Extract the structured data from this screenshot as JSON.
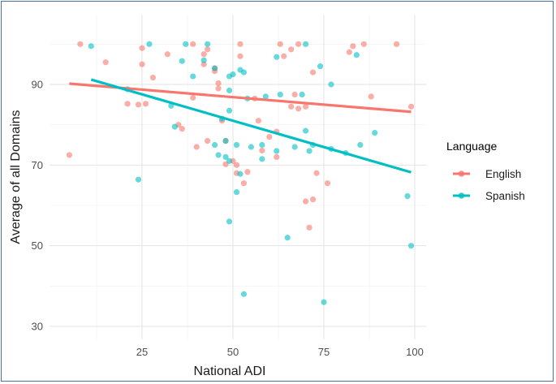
{
  "chart_data": {
    "type": "scatter",
    "title": "",
    "xlabel": "National ADI",
    "ylabel": "Average of all Domains",
    "xlim": [
      0,
      100
    ],
    "ylim": [
      25,
      102
    ],
    "x_ticks": [
      25,
      50,
      75,
      100
    ],
    "y_ticks": [
      30,
      50,
      70,
      90
    ],
    "grid": true,
    "legend": {
      "title": "Language",
      "placement": "right"
    },
    "series": [
      {
        "name": "English",
        "color": "#f8766d",
        "points": [
          [
            5,
            72.5
          ],
          [
            8,
            100
          ],
          [
            15,
            95.5
          ],
          [
            21,
            85.2
          ],
          [
            24,
            85
          ],
          [
            25,
            95
          ],
          [
            25,
            99
          ],
          [
            26,
            85.2
          ],
          [
            28,
            91.7
          ],
          [
            32,
            97.5
          ],
          [
            35,
            80
          ],
          [
            36,
            79
          ],
          [
            39,
            100
          ],
          [
            39,
            86.7
          ],
          [
            40,
            74.5
          ],
          [
            42,
            97.5
          ],
          [
            42,
            95
          ],
          [
            43,
            76
          ],
          [
            43,
            98.7
          ],
          [
            45,
            94
          ],
          [
            45,
            93.3
          ],
          [
            46,
            90.3
          ],
          [
            46,
            89
          ],
          [
            48,
            76
          ],
          [
            47,
            81
          ],
          [
            48,
            70.2
          ],
          [
            50,
            71
          ],
          [
            51,
            70
          ],
          [
            51,
            68
          ],
          [
            52,
            100
          ],
          [
            52,
            97
          ],
          [
            53,
            65.5
          ],
          [
            54,
            68.3
          ],
          [
            56,
            86.5
          ],
          [
            57,
            81
          ],
          [
            58,
            73.6
          ],
          [
            60,
            77
          ],
          [
            62,
            72
          ],
          [
            62,
            78.3
          ],
          [
            63,
            100
          ],
          [
            64,
            97
          ],
          [
            66,
            98.7
          ],
          [
            66,
            84.5
          ],
          [
            67,
            87.5
          ],
          [
            68,
            84
          ],
          [
            68,
            100
          ],
          [
            70,
            84.5
          ],
          [
            70,
            61
          ],
          [
            71,
            54.5
          ],
          [
            72,
            61.5
          ],
          [
            72,
            93
          ],
          [
            73,
            68
          ],
          [
            76,
            65.5
          ],
          [
            82,
            98
          ],
          [
            83,
            99.5
          ],
          [
            86,
            100
          ],
          [
            88,
            87
          ],
          [
            95,
            100
          ],
          [
            99,
            84.5
          ]
        ],
        "trend": {
          "x": [
            5,
            99
          ],
          "y": [
            90.2,
            83.2
          ]
        }
      },
      {
        "name": "Spanish",
        "color": "#00bfc4",
        "points": [
          [
            11,
            99.5
          ],
          [
            21,
            88.8
          ],
          [
            24,
            66.4
          ],
          [
            27,
            100
          ],
          [
            33,
            84.7
          ],
          [
            34,
            79.5
          ],
          [
            36,
            95.8
          ],
          [
            37,
            100
          ],
          [
            39,
            92
          ],
          [
            42,
            96
          ],
          [
            43,
            100
          ],
          [
            45,
            94
          ],
          [
            45,
            75
          ],
          [
            46,
            72.5
          ],
          [
            47,
            81.5
          ],
          [
            48,
            76
          ],
          [
            48,
            72
          ],
          [
            49,
            71
          ],
          [
            49,
            56
          ],
          [
            49,
            83.5
          ],
          [
            49,
            88.5
          ],
          [
            49,
            92
          ],
          [
            50,
            92.5
          ],
          [
            51,
            75
          ],
          [
            51,
            63.3
          ],
          [
            52,
            67.8
          ],
          [
            52,
            93.6
          ],
          [
            53,
            93
          ],
          [
            53,
            38
          ],
          [
            54,
            86.5
          ],
          [
            55,
            74.5
          ],
          [
            58,
            75
          ],
          [
            58,
            71.5
          ],
          [
            59,
            87
          ],
          [
            62,
            96.8
          ],
          [
            62,
            73.5
          ],
          [
            63,
            87.5
          ],
          [
            65,
            52
          ],
          [
            67,
            74.5
          ],
          [
            69,
            87.5
          ],
          [
            70,
            78.5
          ],
          [
            70,
            100
          ],
          [
            71,
            73.5
          ],
          [
            72,
            75
          ],
          [
            74,
            94.5
          ],
          [
            75,
            36
          ],
          [
            77,
            90
          ],
          [
            77,
            74
          ],
          [
            81,
            73
          ],
          [
            84,
            97.3
          ],
          [
            85,
            75
          ],
          [
            89,
            78
          ],
          [
            98,
            62.3
          ],
          [
            99,
            50
          ]
        ],
        "trend": {
          "x": [
            11,
            99
          ],
          "y": [
            91.2,
            68.2
          ]
        }
      }
    ]
  }
}
